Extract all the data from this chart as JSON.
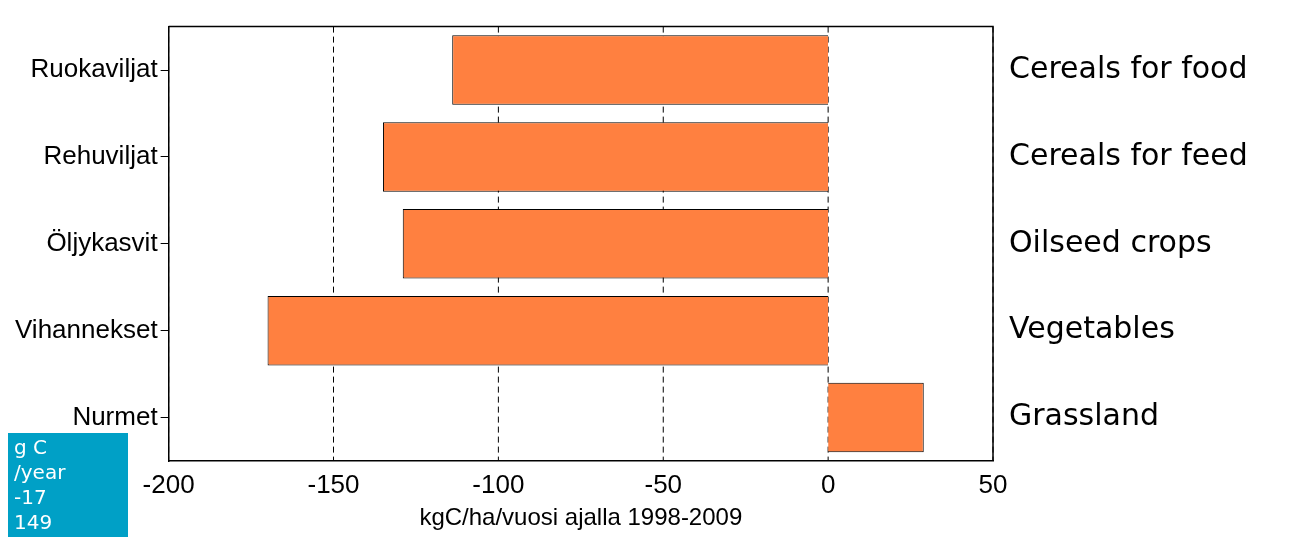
{
  "chart_data": {
    "type": "bar",
    "orientation": "horizontal",
    "xlabel": "kgC/ha/vuosi ajalla 1998-2009",
    "categories": [
      "Ruokaviljat",
      "Rehuviljat",
      "Öljykasvit",
      "Vihannekset",
      "Nurmet"
    ],
    "values": [
      -114,
      -135,
      -129,
      -170,
      29
    ],
    "color": "#ff8040",
    "xlim": [
      -200,
      50
    ],
    "xticks": [
      -200,
      -150,
      -100,
      -50,
      0,
      50
    ],
    "grid": "x",
    "line_style": "dashed",
    "legend": false,
    "annotations": [
      "Cereals for food",
      "Cereals for feed",
      "Oilseed crops",
      "Vegetables",
      "Grassland",
      "g C",
      "/year",
      "-17",
      "149"
    ]
  }
}
